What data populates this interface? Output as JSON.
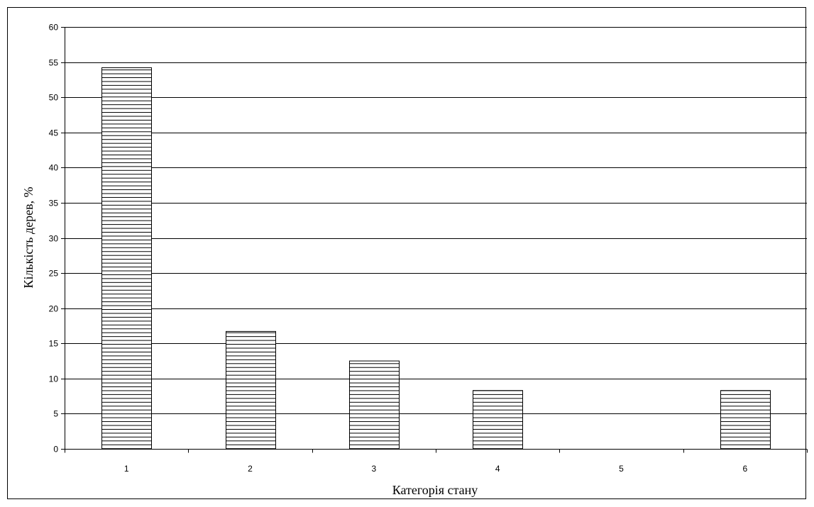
{
  "chart_data": {
    "type": "bar",
    "title": "",
    "xlabel": "Категорія стану",
    "ylabel": "Кількість дерев, %",
    "categories": [
      "1",
      "2",
      "3",
      "4",
      "5",
      "6"
    ],
    "values": [
      54.2,
      16.7,
      12.5,
      8.3,
      0,
      8.3
    ],
    "ylim": [
      0,
      60
    ],
    "yticks": [
      0,
      5,
      10,
      15,
      20,
      25,
      30,
      35,
      40,
      45,
      50,
      55,
      60
    ],
    "ytick_labels": [
      "0",
      "5",
      "10",
      "15",
      "20",
      "25",
      "30",
      "35",
      "40",
      "45",
      "50",
      "55",
      "60"
    ],
    "grid": "horizontal",
    "legend": "none",
    "bar_fill": "horizontal-stripes",
    "colors": {
      "bar_stroke": "#000000",
      "bar_stripe": "#000000",
      "bar_background": "#ffffff",
      "gridline": "#000000",
      "axis": "#000000"
    }
  }
}
